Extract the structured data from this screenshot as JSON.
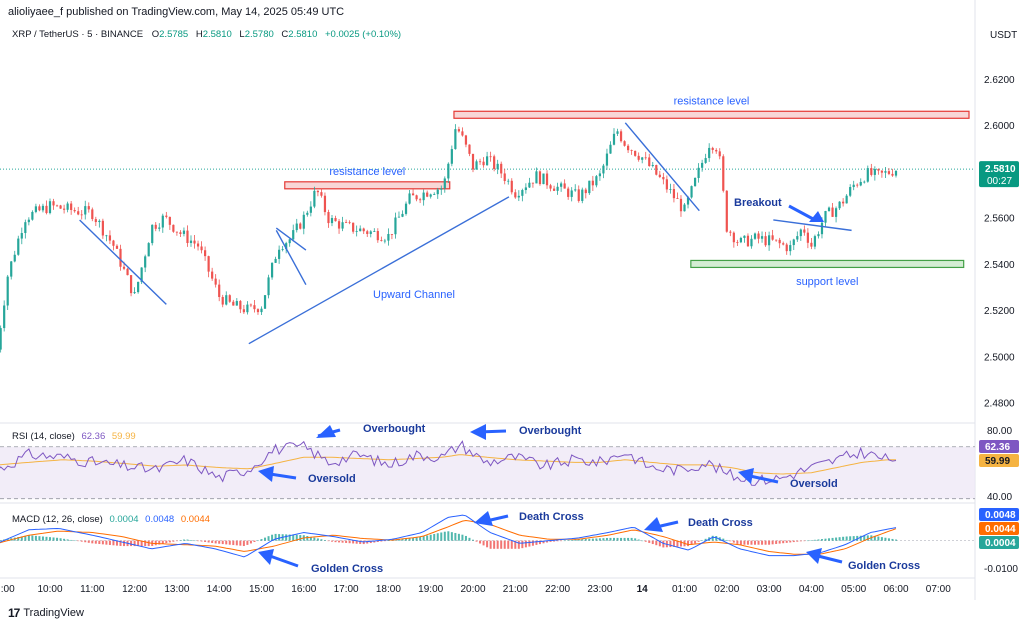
{
  "header": {
    "publisher_line": "alioliyaee_f published on TradingView.com, May 14, 2025 05:49 UTC"
  },
  "footer": {
    "brand": "TradingView",
    "logo_glyph": "17"
  },
  "colors": {
    "up": "#26a69a",
    "down": "#ef5350",
    "trend": "#3a6fd8",
    "resistance_fill": "#f8d7d7",
    "resistance_stroke": "#e53935",
    "support_fill": "#d4edd4",
    "support_stroke": "#43a047",
    "rsi": "#7e57c2",
    "rsi_ma": "#f5b342",
    "macd": "#2962ff",
    "signal": "#ff6d00",
    "arrow": "#2962ff"
  },
  "chart_data": {
    "type": "candlestick",
    "symbol_legend": {
      "symbol": "XRP / TetherUS · 5 · BINANCE",
      "o_label": "O",
      "o_value": "2.5785",
      "h_label": "H",
      "h_value": "2.5810",
      "l_label": "L",
      "l_value": "2.5780",
      "c_label": "C",
      "c_value": "2.5810",
      "change": "+0.0025 (+0.10%)"
    },
    "currency": "USDT",
    "price_axis": {
      "ticks": [
        "2.6200",
        "2.6000",
        "2.5800",
        "2.5600",
        "2.5400",
        "2.5200",
        "2.5000",
        "2.4800"
      ],
      "values": [
        2.62,
        2.6,
        2.58,
        2.56,
        2.54,
        2.52,
        2.5,
        2.48
      ],
      "ylim": [
        2.4725,
        2.6325
      ]
    },
    "last_price": {
      "value": 2.581,
      "label": "2.5810",
      "countdown": "00:27"
    },
    "time_axis": {
      "labels": [
        ":00",
        "10:00",
        "11:00",
        "12:00",
        "13:00",
        "14:00",
        "15:00",
        "16:00",
        "17:00",
        "18:00",
        "19:00",
        "20:00",
        "21:00",
        "22:00",
        "23:00",
        "14",
        "01:00",
        "02:00",
        "03:00",
        "04:00",
        "05:00",
        "06:00",
        "07:00"
      ],
      "start_hour": 8.72,
      "end_hour": 31.9
    },
    "price_path": {
      "hours": [
        8.75,
        9.0,
        9.4,
        10.0,
        10.6,
        11.0,
        11.5,
        12.0,
        12.4,
        12.7,
        13.1,
        13.5,
        14.0,
        14.3,
        14.7,
        15.0,
        15.4,
        15.7,
        16.0,
        16.3,
        16.6,
        17.0,
        17.5,
        18.0,
        18.5,
        19.0,
        19.3,
        19.6,
        19.8,
        20.0,
        20.3,
        20.7,
        21.0,
        21.5,
        22.0,
        22.5,
        23.0,
        23.4,
        23.6,
        24.0,
        24.5,
        25.0,
        25.3,
        25.6,
        25.8,
        26.0,
        26.3,
        26.7,
        27.0,
        27.5,
        27.8,
        28.0,
        28.3,
        28.7,
        29.0,
        29.3,
        29.6,
        30.0
      ],
      "prices": [
        2.503,
        2.535,
        2.56,
        2.565,
        2.563,
        2.562,
        2.548,
        2.526,
        2.556,
        2.56,
        2.553,
        2.548,
        2.526,
        2.522,
        2.52,
        2.522,
        2.548,
        2.551,
        2.56,
        2.572,
        2.559,
        2.556,
        2.554,
        2.552,
        2.568,
        2.572,
        2.573,
        2.6,
        2.592,
        2.582,
        2.586,
        2.579,
        2.571,
        2.578,
        2.573,
        2.569,
        2.578,
        2.598,
        2.592,
        2.586,
        2.575,
        2.563,
        2.578,
        2.593,
        2.59,
        2.556,
        2.549,
        2.551,
        2.55,
        2.547,
        2.556,
        2.548,
        2.56,
        2.566,
        2.574,
        2.579,
        2.578,
        2.581
      ]
    },
    "resistance_zones": [
      {
        "label": "resistance level",
        "h1": 15.55,
        "h2": 19.45,
        "p1": 2.574,
        "p2": 2.5755
      },
      {
        "label": "resistance level",
        "h1": 19.55,
        "h2": 32.9,
        "p1": 2.603,
        "p2": 2.606
      }
    ],
    "support_zone": {
      "label": "support level",
      "h1": 25.15,
      "h2": 31.6,
      "p1": 2.5395,
      "p2": 2.5415
    },
    "trend_lines": [
      {
        "h1": 10.7,
        "p1": 2.559,
        "h2": 12.75,
        "p2": 2.5225
      },
      {
        "h1": 14.7,
        "p1": 2.5055,
        "h2": 20.85,
        "p2": 2.569
      },
      {
        "h1": 15.35,
        "p1": 2.5555,
        "h2": 16.05,
        "p2": 2.546
      },
      {
        "h1": 15.35,
        "p1": 2.5545,
        "h2": 16.05,
        "p2": 2.531
      },
      {
        "h1": 23.6,
        "p1": 2.601,
        "h2": 25.35,
        "p2": 2.563
      },
      {
        "h1": 27.1,
        "p1": 2.559,
        "h2": 28.95,
        "p2": 2.5545
      }
    ],
    "annotations": {
      "upward_channel": "Upward Channel",
      "breakout": "Breakout"
    },
    "rsi": {
      "legend_name": "RSI (14, close)",
      "value_label": "62.36",
      "ma_label": "59.99",
      "axis_ticks": [
        "80.00",
        "40.00"
      ],
      "ylim": [
        29,
        86
      ],
      "upper": 70,
      "lower": 30,
      "hours": [
        8.75,
        9.5,
        10.3,
        11.0,
        11.8,
        12.5,
        13.2,
        14.0,
        14.7,
        15.3,
        16.0,
        16.6,
        17.3,
        18.0,
        18.7,
        19.3,
        19.7,
        20.3,
        21.0,
        21.7,
        22.4,
        23.0,
        23.6,
        24.2,
        24.9,
        25.5,
        26.1,
        26.7,
        27.3,
        28.0,
        28.6,
        29.2,
        29.8,
        30.0
      ],
      "values": [
        52,
        64,
        62,
        58,
        55,
        52,
        60,
        46,
        53,
        68,
        70,
        58,
        64,
        56,
        64,
        62,
        72,
        58,
        62,
        55,
        60,
        58,
        66,
        54,
        52,
        58,
        48,
        44,
        46,
        54,
        60,
        66,
        60,
        62
      ],
      "ma_values": [
        56,
        58,
        60,
        59,
        57,
        55,
        56,
        54,
        53,
        57,
        62,
        62,
        61,
        60,
        61,
        62,
        64,
        62,
        60,
        59,
        58,
        58,
        60,
        58,
        56,
        56,
        54,
        50,
        49,
        50,
        54,
        58,
        60,
        60
      ],
      "annotations": [
        "Overbought",
        "Overbought",
        "Oversold",
        "Oversold"
      ]
    },
    "macd": {
      "legend_name": "MACD (12, 26, close)",
      "hist_label": "0.0004",
      "macd_label": "0.0048",
      "signal_label": "0.0044",
      "axis_ticks": [
        "-0.0100"
      ],
      "badges": [
        "0.0048",
        "0.0044",
        "0.0004"
      ],
      "ylim": [
        -0.013,
        0.012
      ],
      "hours": [
        8.75,
        9.5,
        10.2,
        11.0,
        11.7,
        12.4,
        13.2,
        13.9,
        14.6,
        15.3,
        16.0,
        16.7,
        17.4,
        18.1,
        18.8,
        19.4,
        19.8,
        20.4,
        21.1,
        21.8,
        22.5,
        23.2,
        23.8,
        24.5,
        25.1,
        25.7,
        26.3,
        27.0,
        27.6,
        28.2,
        28.8,
        29.4,
        30.0
      ],
      "macd_values": [
        -0.001,
        0.004,
        0.0045,
        0.002,
        -0.0005,
        -0.003,
        -0.001,
        -0.003,
        -0.006,
        0.0005,
        0.003,
        0.0015,
        -0.0005,
        0.0005,
        0.003,
        0.0085,
        0.0095,
        0.003,
        -0.001,
        0.0,
        0.001,
        0.003,
        0.005,
        -0.001,
        -0.0035,
        0.0015,
        -0.003,
        -0.0055,
        -0.0055,
        -0.0045,
        -0.0015,
        0.003,
        0.0048
      ],
      "signal_values": [
        -0.001,
        0.002,
        0.0035,
        0.003,
        0.0015,
        -0.001,
        -0.0015,
        -0.002,
        -0.004,
        -0.002,
        0.001,
        0.002,
        0.0008,
        0.0002,
        0.0015,
        0.005,
        0.0075,
        0.006,
        0.002,
        0.0005,
        0.0005,
        0.002,
        0.004,
        0.0015,
        -0.0015,
        -0.0005,
        -0.0015,
        -0.004,
        -0.005,
        -0.005,
        -0.003,
        0.001,
        0.0044
      ],
      "annotations": [
        "Death Cross",
        "Death Cross",
        "Golden Cross",
        "Golden Cross"
      ]
    }
  }
}
